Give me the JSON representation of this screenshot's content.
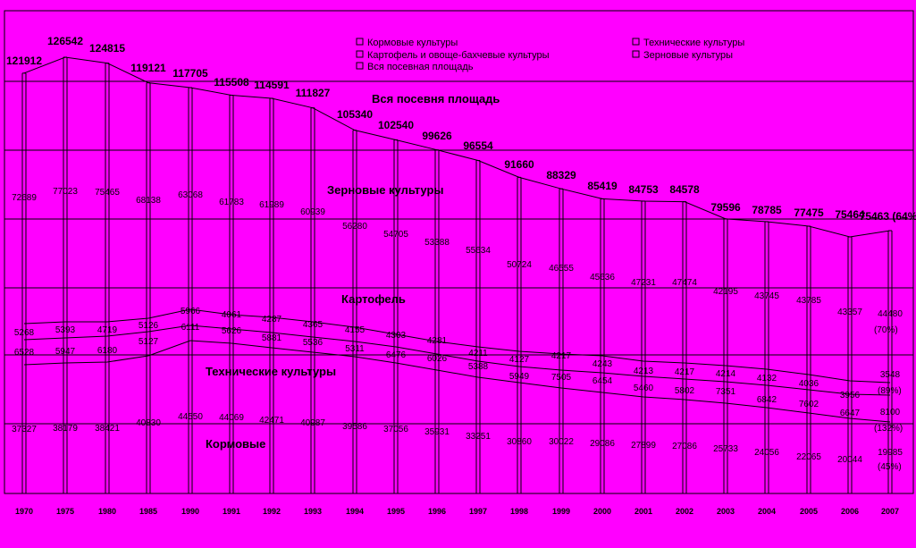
{
  "colors": {
    "background": "#ff00ff",
    "ink": "#000000"
  },
  "chart_data": {
    "type": "line",
    "categories": [
      "1970",
      "1975",
      "1980",
      "1985",
      "1990",
      "1991",
      "1992",
      "1993",
      "1994",
      "1995",
      "1996",
      "1997",
      "1998",
      "1999",
      "2000",
      "2001",
      "2002",
      "2003",
      "2004",
      "2005",
      "2006",
      "2007"
    ],
    "legend": {
      "placement": "top",
      "items": [
        "Кормовые культуры",
        "Технические культуры",
        "Картофель и овоще-бахчевые культуры",
        "Зерновые культуры",
        "Вся посевная площадь"
      ]
    },
    "annotations": {
      "total": "Вся посевня площадь",
      "grain": "Зерновые культуры",
      "potato": "Картофель",
      "technical": "Технические культуры",
      "fodder": "Кормовые"
    },
    "grid": true,
    "series": [
      {
        "name": "Вся посевная площадь",
        "values": [
          121912,
          126542,
          124815,
          119121,
          117705,
          115508,
          114591,
          111827,
          105340,
          102540,
          99626,
          96554,
          91660,
          88329,
          85419,
          84753,
          84578,
          79596,
          78785,
          77475,
          null,
          null
        ]
      },
      {
        "name": "Зерновые культуры",
        "values": [
          72689,
          77023,
          75465,
          68138,
          63068,
          61783,
          61989,
          60939,
          56280,
          54705,
          53388,
          55634,
          50724,
          46555,
          45636,
          47231,
          47474,
          42195,
          43745,
          43785,
          43357,
          44480
        ]
      },
      {
        "name": "Картофель и овоще-бахчевые культуры",
        "values": [
          5268,
          5393,
          4719,
          5126,
          5966,
          4061,
          4287,
          4365,
          4155,
          4303,
          4281,
          4211,
          4127,
          4217,
          4243,
          4213,
          4217,
          4214,
          4132,
          4036,
          3956,
          3548
        ]
      },
      {
        "name": "Технические культуры",
        "values": [
          6528,
          5947,
          6180,
          5127,
          6111,
          5626,
          5881,
          5536,
          5311,
          6476,
          6026,
          5388,
          5949,
          7505,
          6454,
          5460,
          5802,
          7351,
          6842,
          7602,
          6647,
          8100
        ]
      },
      {
        "name": "Кормовые культуры",
        "values": [
          37327,
          38179,
          38421,
          40830,
          44550,
          44069,
          42471,
          40987,
          39586,
          37056,
          35931,
          33251,
          30860,
          30022,
          29086,
          27899,
          27086,
          25733,
          24056,
          22065,
          20044,
          19985
        ]
      }
    ],
    "value_labels": {
      "total": [
        "121912",
        "126542",
        "124815",
        "119121",
        "117705",
        "115508",
        "114591",
        "111827",
        "105340",
        "102540",
        "99626",
        "96554",
        "91660",
        "88329",
        "85419",
        "84753",
        "84578",
        "79596",
        "78785",
        "77475",
        "75464",
        "75463 (64%)"
      ],
      "grain": [
        "72689",
        "77023",
        "75465",
        "68138",
        "63068",
        "61783",
        "61989",
        "60939",
        "56280",
        "54705",
        "53388",
        "55634",
        "50724",
        "46555",
        "45636",
        "47231",
        "47474",
        "42195",
        "43745",
        "43785",
        "43357",
        "44480"
      ],
      "grain_pct_2007": "(70%)",
      "potato": [
        "5268",
        "5393",
        "4719",
        "5126",
        "5966",
        "4061",
        "4287",
        "4365",
        "4155",
        "4303",
        "4281",
        "4211",
        "4127",
        "4217",
        "4243",
        "4213",
        "4217",
        "4214",
        "4132",
        "4036",
        "3956",
        "3548"
      ],
      "potato_pct_2007": "(89%)",
      "technical": [
        "6528",
        "5947",
        "6180",
        "5127",
        "6111",
        "5626",
        "5881",
        "5536",
        "5311",
        "6476",
        "6026",
        "5388",
        "5949",
        "7505",
        "6454",
        "5460",
        "5802",
        "7351",
        "6842",
        "7602",
        "6647",
        "8100"
      ],
      "technical_pct_2007": "(132%)",
      "fodder": [
        "37327",
        "38179",
        "38421",
        "40830",
        "44550",
        "44069",
        "42471",
        "40987",
        "39586",
        "37056",
        "35931",
        "33251",
        "30860",
        "30022",
        "29086",
        "27899",
        "27086",
        "25733",
        "24056",
        "22065",
        "20044",
        "19985"
      ],
      "fodder_pct_2007": "(45%)"
    }
  }
}
